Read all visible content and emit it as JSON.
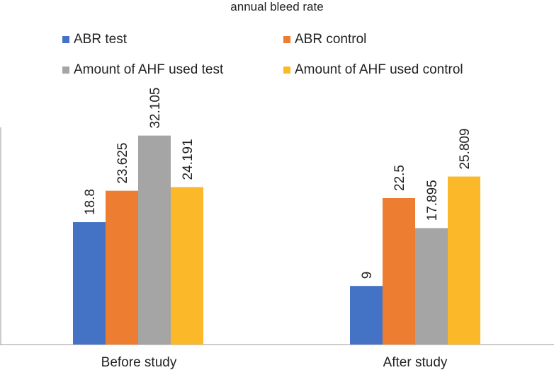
{
  "chart_data": {
    "type": "bar",
    "title": "annual bleed rate",
    "categories": [
      "Before study",
      "After study"
    ],
    "series": [
      {
        "name": "ABR test",
        "color": "#4472C4",
        "values": [
          18.8,
          9
        ]
      },
      {
        "name": "ABR control",
        "color": "#ED7D31",
        "values": [
          23.625,
          22.5
        ]
      },
      {
        "name": "Amount of AHF used test",
        "color": "#A5A5A5",
        "values": [
          32.105,
          17.895
        ]
      },
      {
        "name": "Amount of AHF used control",
        "color": "#FBB829",
        "values": [
          24.191,
          25.809
        ]
      }
    ],
    "data_labels": [
      [
        "18.8",
        "9"
      ],
      [
        "23.625",
        "22.5"
      ],
      [
        "32.105",
        "17.895"
      ],
      [
        "24.191",
        "25.809"
      ]
    ],
    "xlabel": "",
    "ylabel": "",
    "ylim": [
      0,
      35
    ],
    "grid": false,
    "legend_position": "top"
  }
}
